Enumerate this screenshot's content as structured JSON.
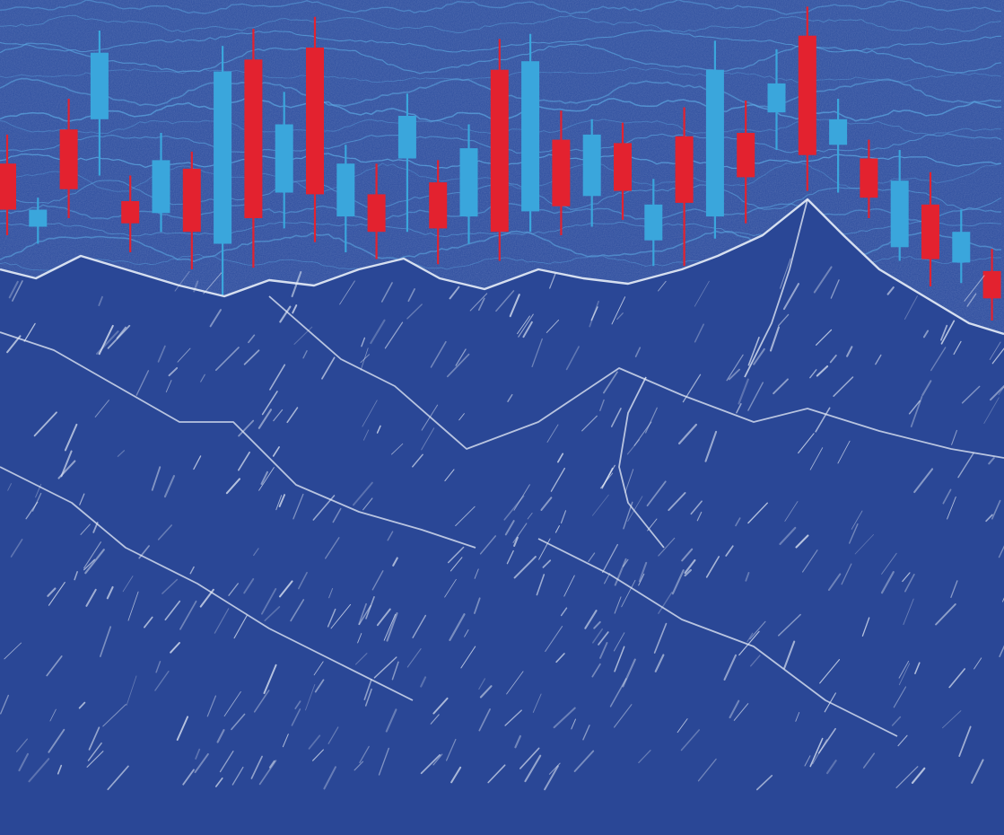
{
  "chart_data": {
    "type": "candlestick",
    "candles": [
      {
        "open": 62,
        "close": 35,
        "high": 79,
        "low": 20
      },
      {
        "open": 25,
        "close": 35,
        "high": 42,
        "low": 15
      },
      {
        "open": 82,
        "close": 47,
        "high": 100,
        "low": 30
      },
      {
        "open": 88,
        "close": 127,
        "high": 140,
        "low": 55
      },
      {
        "open": 40,
        "close": 27,
        "high": 55,
        "low": 10
      },
      {
        "open": 33,
        "close": 64,
        "high": 80,
        "low": 22
      },
      {
        "open": 59,
        "close": 22,
        "high": 69,
        "low": 0
      },
      {
        "open": 15,
        "close": 116,
        "high": 131,
        "low": -15
      },
      {
        "open": 123,
        "close": 30,
        "high": 141,
        "low": 1
      },
      {
        "open": 45,
        "close": 85,
        "high": 104,
        "low": 24
      },
      {
        "open": 130,
        "close": 44,
        "high": 148,
        "low": 16
      },
      {
        "open": 31,
        "close": 62,
        "high": 73,
        "low": 10
      },
      {
        "open": 44,
        "close": 22,
        "high": 62,
        "low": 6
      },
      {
        "open": 65,
        "close": 90,
        "high": 103,
        "low": 22
      },
      {
        "open": 51,
        "close": 24,
        "high": 64,
        "low": 3
      },
      {
        "open": 31,
        "close": 71,
        "high": 85,
        "low": 15
      },
      {
        "open": 117,
        "close": 22,
        "high": 135,
        "low": 5
      },
      {
        "open": 34,
        "close": 122,
        "high": 138,
        "low": 22
      },
      {
        "open": 76,
        "close": 37,
        "high": 93,
        "low": 20
      },
      {
        "open": 43,
        "close": 79,
        "high": 88,
        "low": 25
      },
      {
        "open": 74,
        "close": 46,
        "high": 86,
        "low": 29
      },
      {
        "open": 17,
        "close": 38,
        "high": 53,
        "low": 2
      },
      {
        "open": 78,
        "close": 39,
        "high": 95,
        "low": 2
      },
      {
        "open": 31,
        "close": 117,
        "high": 134,
        "low": 18
      },
      {
        "open": 80,
        "close": 54,
        "high": 99,
        "low": 27
      },
      {
        "open": 92,
        "close": 109,
        "high": 129,
        "low": 70
      },
      {
        "open": 137,
        "close": 67,
        "high": 154,
        "low": 46
      },
      {
        "open": 73,
        "close": 88,
        "high": 100,
        "low": 45
      },
      {
        "open": 65,
        "close": 42,
        "high": 76,
        "low": 30
      },
      {
        "open": 13,
        "close": 52,
        "high": 70,
        "low": 5
      },
      {
        "open": 38,
        "close": 6,
        "high": 57,
        "low": -10
      },
      {
        "open": 4,
        "close": 22,
        "high": 35,
        "low": -8
      },
      {
        "open": -1,
        "close": -17,
        "high": 12,
        "low": -30
      }
    ],
    "colors": {
      "up": "#3aa6dc",
      "down": "#e3222f",
      "background": "#2a4a98",
      "chalk": "#e8eef8",
      "waves": "#5fb0e8"
    }
  }
}
